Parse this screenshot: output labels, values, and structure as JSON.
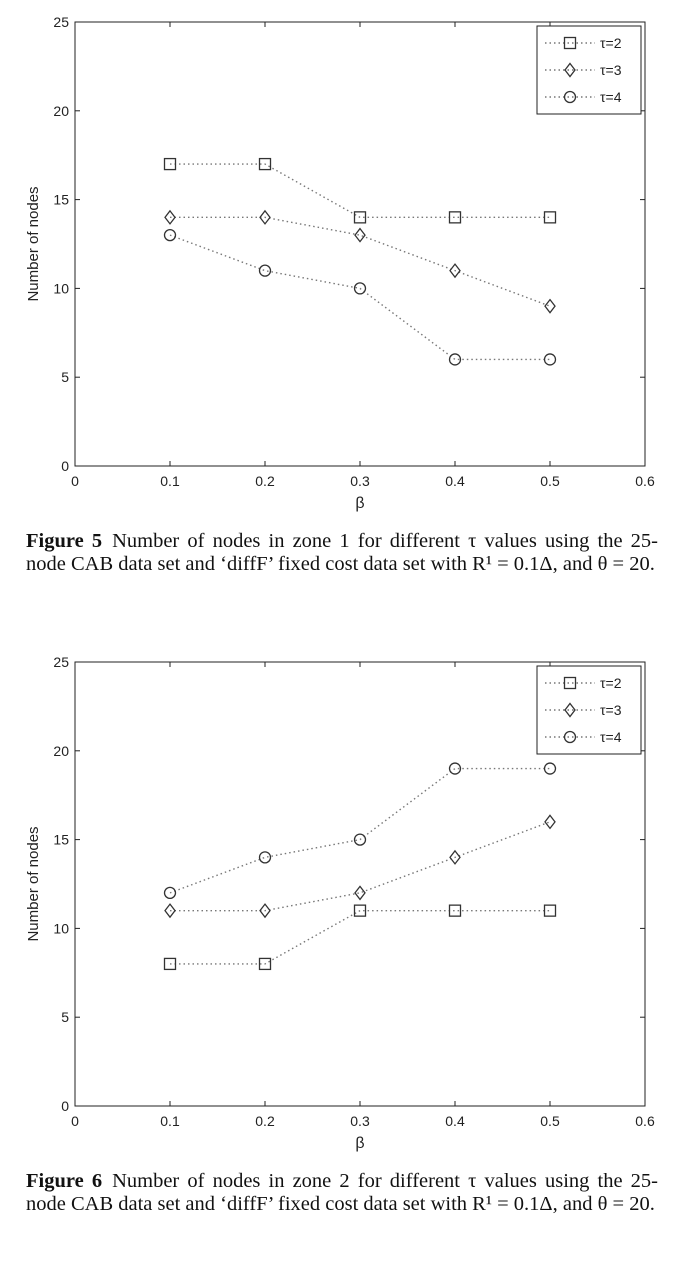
{
  "chart_data": [
    {
      "type": "line",
      "title": "",
      "xlabel": "β",
      "ylabel": "Number of nodes",
      "xlim": [
        0,
        0.6
      ],
      "ylim": [
        0,
        25
      ],
      "xticks": [
        "0",
        "0.1",
        "0.2",
        "0.3",
        "0.4",
        "0.5",
        "0.6"
      ],
      "yticks": [
        "0",
        "5",
        "10",
        "15",
        "20",
        "25"
      ],
      "x": [
        0.1,
        0.2,
        0.3,
        0.4,
        0.5
      ],
      "legend_position": "top-right",
      "grid": false,
      "series": [
        {
          "name": "τ=2",
          "marker": "square",
          "values": [
            17,
            17,
            14,
            14,
            14
          ]
        },
        {
          "name": "τ=3",
          "marker": "diamond",
          "values": [
            14,
            14,
            13,
            11,
            9
          ]
        },
        {
          "name": "τ=4",
          "marker": "circle",
          "values": [
            13,
            11,
            10,
            6,
            6
          ]
        }
      ]
    },
    {
      "type": "line",
      "title": "",
      "xlabel": "β",
      "ylabel": "Number of nodes",
      "xlim": [
        0,
        0.6
      ],
      "ylim": [
        0,
        25
      ],
      "xticks": [
        "0",
        "0.1",
        "0.2",
        "0.3",
        "0.4",
        "0.5",
        "0.6"
      ],
      "yticks": [
        "0",
        "5",
        "10",
        "15",
        "20",
        "25"
      ],
      "x": [
        0.1,
        0.2,
        0.3,
        0.4,
        0.5
      ],
      "legend_position": "top-right",
      "grid": false,
      "series": [
        {
          "name": "τ=2",
          "marker": "square",
          "values": [
            8,
            8,
            11,
            11,
            11
          ]
        },
        {
          "name": "τ=3",
          "marker": "diamond",
          "values": [
            11,
            11,
            12,
            14,
            16
          ]
        },
        {
          "name": "τ=4",
          "marker": "circle",
          "values": [
            12,
            14,
            15,
            19,
            19
          ]
        }
      ]
    }
  ],
  "captions": [
    {
      "label": "Figure 5",
      "text": "Number of nodes in zone 1 for different τ values using the 25-node CAB data set and ‘diffF’ fixed cost data set with R¹ = 0.1Δ, and θ = 20."
    },
    {
      "label": "Figure 6",
      "text": "Number of nodes in zone 2 for different τ values using the 25-node CAB data set and ‘diffF’ fixed cost data set with R¹ = 0.1Δ, and θ = 20."
    }
  ],
  "colors": {
    "axis": "#222222",
    "series_line": "#777777",
    "marker": "#333333"
  }
}
